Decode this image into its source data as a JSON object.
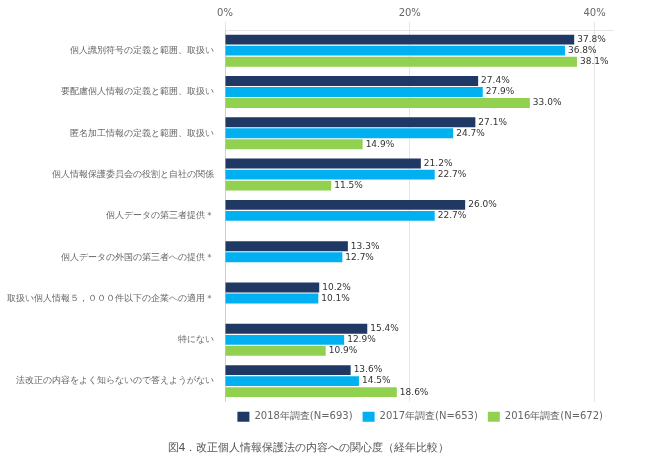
{
  "chart_data": {
    "type": "bar",
    "orientation": "horizontal",
    "title": "図4．改正個人情報保護法の内容への関心度（経年比較）",
    "categories": [
      "個人識別符号の定義と範囲、取扱い",
      "要配慮個人情報の定義と範囲、取扱い",
      "匿名加工情報の定義と範囲、取扱い",
      "個人情報保護委員会の役割と自社の関係",
      "個人データの第三者提供＊",
      "個人データの外国の第三者への提供＊",
      "取扱い個人情報５，０００件以下の企業への適用＊",
      "特にない",
      "法改正の内容をよく知らないので答えようがない"
    ],
    "series": [
      {
        "name": "2018年調査(N=693)",
        "color": "#1f3864",
        "values": [
          37.8,
          27.4,
          27.1,
          21.2,
          26.0,
          13.3,
          10.2,
          15.4,
          13.6
        ],
        "value_labels": [
          "37.8%",
          "27.4%",
          "27.1%",
          "21.2%",
          "26.0%",
          "13.3%",
          "10.2%",
          "15.4%",
          "13.6%"
        ]
      },
      {
        "name": "2017年調査(N=653)",
        "color": "#00b0f0",
        "values": [
          36.8,
          27.9,
          24.7,
          22.7,
          22.7,
          12.7,
          10.1,
          12.9,
          14.5
        ],
        "value_labels": [
          "36.8%",
          "27.9%",
          "24.7%",
          "22.7%",
          "22.7%",
          "12.7%",
          "10.1%",
          "12.9%",
          "14.5%"
        ]
      },
      {
        "name": "2016年調査(N=672)",
        "color": "#92d050",
        "values": [
          38.1,
          33.0,
          14.9,
          11.5,
          null,
          null,
          null,
          10.9,
          18.6
        ],
        "value_labels": [
          "38.1%",
          "33.0%",
          "14.9%",
          "11.5%",
          null,
          null,
          null,
          "10.9%",
          "18.6%"
        ]
      }
    ],
    "xlim": [
      0,
      42
    ],
    "xticks": [
      {
        "value": 0,
        "label": "0%"
      },
      {
        "value": 20,
        "label": "20%"
      },
      {
        "value": 40,
        "label": "40%"
      }
    ],
    "grid": true,
    "legend": "lower right",
    "data_labels": true
  }
}
